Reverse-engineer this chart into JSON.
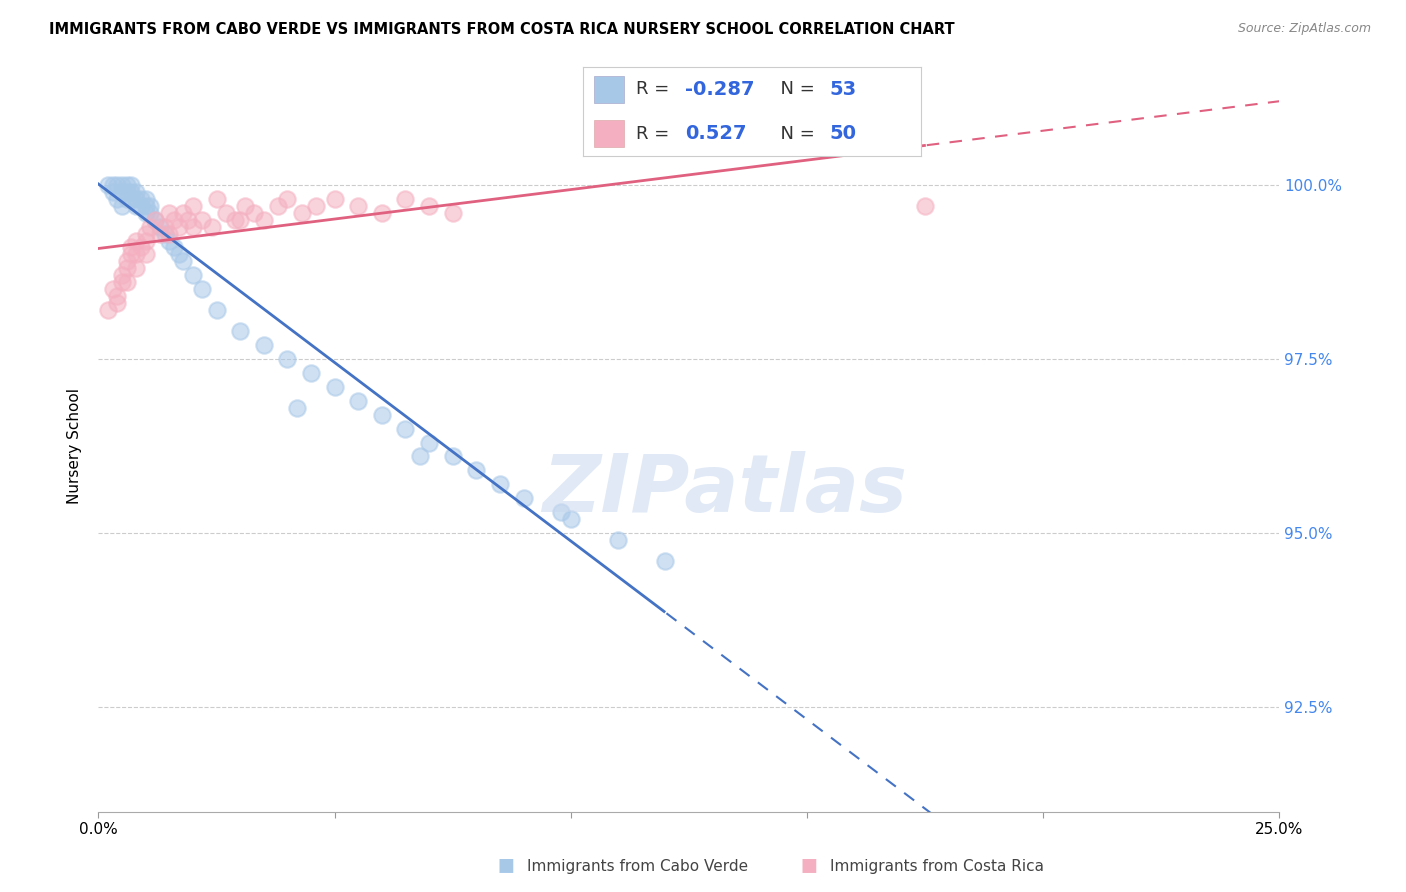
{
  "title": "IMMIGRANTS FROM CABO VERDE VS IMMIGRANTS FROM COSTA RICA NURSERY SCHOOL CORRELATION CHART",
  "source": "Source: ZipAtlas.com",
  "ylabel": "Nursery School",
  "ytick_values": [
    92.5,
    95.0,
    97.5,
    100.0
  ],
  "xlim": [
    0.0,
    25.0
  ],
  "ylim": [
    91.0,
    101.5
  ],
  "cabo_verde_R": "-0.287",
  "cabo_verde_N": "53",
  "costa_rica_R": "0.527",
  "costa_rica_N": "50",
  "cabo_verde_color": "#a8c8e8",
  "costa_rica_color": "#f4b0c0",
  "cabo_verde_line_color": "#4472c4",
  "costa_rica_line_color": "#e06080",
  "watermark": "ZIPatlas",
  "cabo_verde_x": [
    0.2,
    0.3,
    0.3,
    0.4,
    0.4,
    0.5,
    0.5,
    0.5,
    0.6,
    0.6,
    0.6,
    0.7,
    0.7,
    0.7,
    0.8,
    0.8,
    0.8,
    0.9,
    0.9,
    1.0,
    1.0,
    1.0,
    1.1,
    1.1,
    1.2,
    1.3,
    1.4,
    1.5,
    1.6,
    1.7,
    1.8,
    2.0,
    2.2,
    2.5,
    3.0,
    3.5,
    4.0,
    4.5,
    5.0,
    5.5,
    6.0,
    6.5,
    7.0,
    7.5,
    8.0,
    8.5,
    9.0,
    10.0,
    11.0,
    12.0,
    4.2,
    9.8,
    6.8
  ],
  "cabo_verde_y": [
    100.0,
    100.0,
    99.9,
    100.0,
    99.8,
    99.9,
    100.0,
    99.7,
    100.0,
    99.9,
    99.8,
    100.0,
    99.9,
    99.8,
    99.7,
    99.8,
    99.9,
    99.8,
    99.7,
    99.8,
    99.7,
    99.6,
    99.7,
    99.6,
    99.5,
    99.4,
    99.3,
    99.2,
    99.1,
    99.0,
    98.9,
    98.7,
    98.5,
    98.2,
    97.9,
    97.7,
    97.5,
    97.3,
    97.1,
    96.9,
    96.7,
    96.5,
    96.3,
    96.1,
    95.9,
    95.7,
    95.5,
    95.2,
    94.9,
    94.6,
    96.8,
    95.3,
    96.1
  ],
  "costa_rica_x": [
    0.2,
    0.3,
    0.4,
    0.5,
    0.5,
    0.6,
    0.6,
    0.7,
    0.7,
    0.8,
    0.8,
    0.9,
    1.0,
    1.0,
    1.1,
    1.2,
    1.3,
    1.4,
    1.5,
    1.6,
    1.7,
    1.8,
    1.9,
    2.0,
    2.2,
    2.4,
    2.5,
    2.7,
    2.9,
    3.1,
    3.3,
    3.5,
    3.8,
    4.0,
    4.3,
    4.6,
    5.0,
    5.5,
    6.0,
    6.5,
    7.0,
    7.5,
    0.4,
    0.6,
    0.8,
    1.0,
    1.5,
    2.0,
    3.0,
    17.5
  ],
  "costa_rica_y": [
    98.2,
    98.5,
    98.4,
    98.7,
    98.6,
    98.8,
    98.9,
    99.0,
    99.1,
    99.2,
    99.0,
    99.1,
    99.3,
    99.2,
    99.4,
    99.5,
    99.3,
    99.4,
    99.6,
    99.5,
    99.4,
    99.6,
    99.5,
    99.7,
    99.5,
    99.4,
    99.8,
    99.6,
    99.5,
    99.7,
    99.6,
    99.5,
    99.7,
    99.8,
    99.6,
    99.7,
    99.8,
    99.7,
    99.6,
    99.8,
    99.7,
    99.6,
    98.3,
    98.6,
    98.8,
    99.0,
    99.3,
    99.4,
    99.5,
    99.7
  ]
}
